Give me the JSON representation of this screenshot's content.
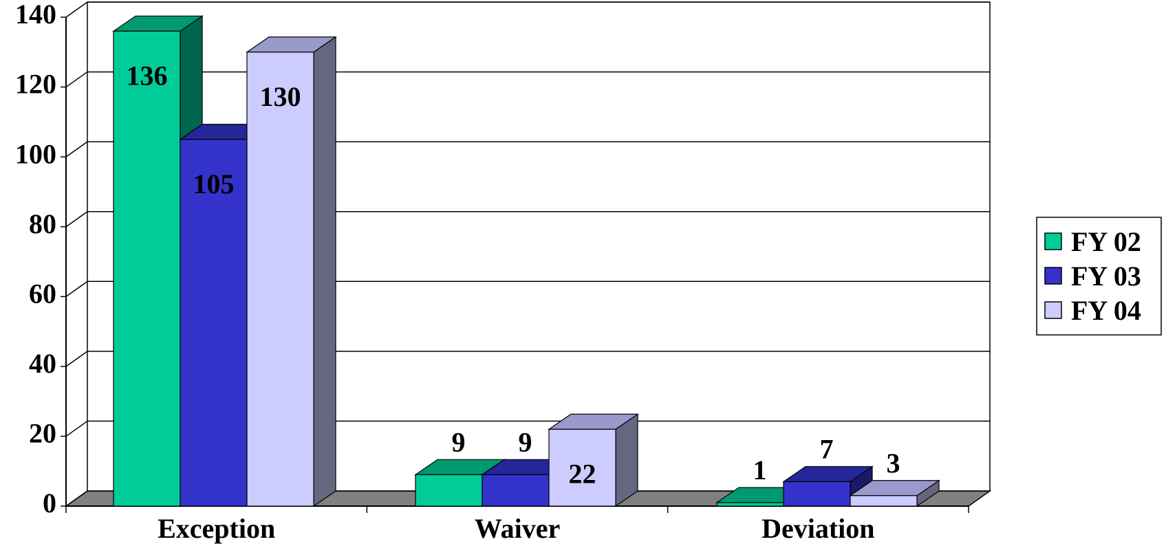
{
  "chart_data": {
    "type": "bar",
    "style": "3d-clustered",
    "title": "",
    "xlabel": "",
    "ylabel": "",
    "categories": [
      "Exception",
      "Waiver",
      "Deviation"
    ],
    "series": [
      {
        "name": "FY 02",
        "values": [
          136,
          9,
          1
        ],
        "color": "#00CC99",
        "top_color": "#009970",
        "side_color": "#006650"
      },
      {
        "name": "FY 03",
        "values": [
          105,
          9,
          7
        ],
        "color": "#3333CC",
        "top_color": "#262699",
        "side_color": "#1A1A66"
      },
      {
        "name": "FY 04",
        "values": [
          130,
          22,
          3
        ],
        "color": "#CCCCFF",
        "top_color": "#9999CC",
        "side_color": "#666680"
      }
    ],
    "ylim": [
      0,
      140
    ],
    "yticks": [
      0,
      20,
      40,
      60,
      80,
      100,
      120,
      140
    ],
    "grid": true,
    "legend_position": "right",
    "floor_color": "#808080"
  }
}
